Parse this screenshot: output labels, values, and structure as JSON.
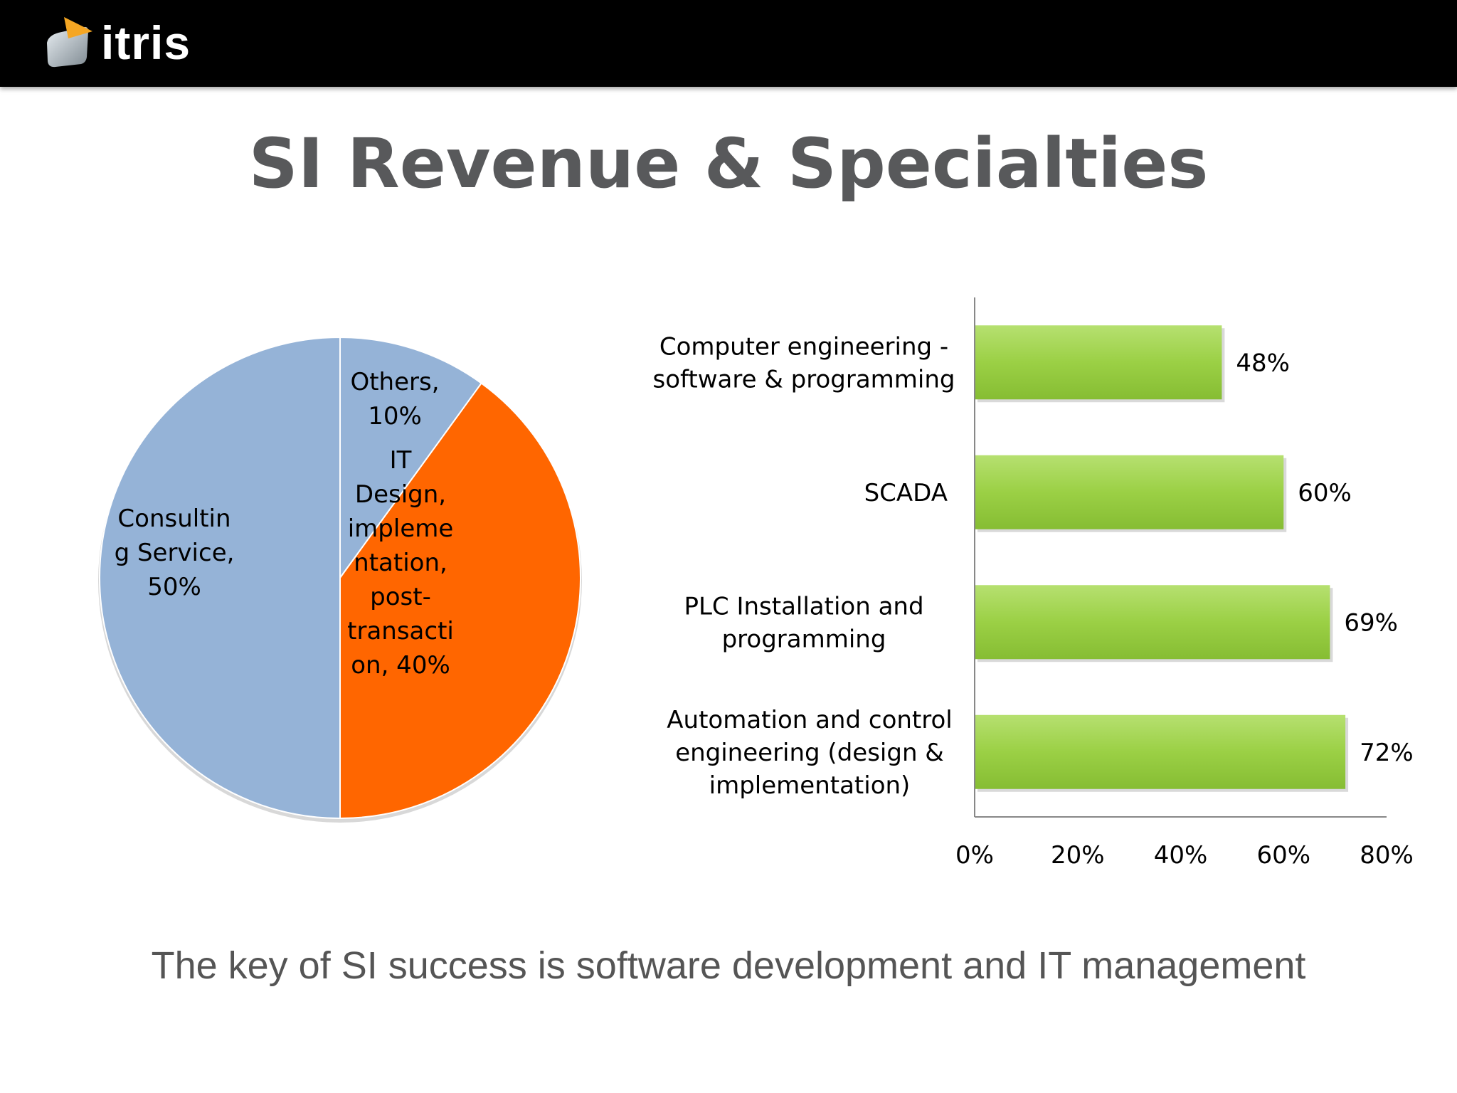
{
  "header": {
    "logo_text": "itris",
    "logo_icon": "itris-logo-icon"
  },
  "title": "SI Revenue & Specialties",
  "caption": "The key of SI success is software development and IT management",
  "colors": {
    "pie_blue": "#95b3d7",
    "pie_orange": "#ff6600",
    "bar_green": "#9bd045",
    "axis": "#888888",
    "text": "#000000"
  },
  "chart_data": [
    {
      "type": "pie",
      "slices": [
        {
          "label_lines": [
            "Others,",
            "10%"
          ],
          "value": 10,
          "color": "#95b3d7"
        },
        {
          "label_lines": [
            "IT",
            "Design,",
            "impleme",
            "ntation,",
            "post-",
            "transacti",
            "on, 40%"
          ],
          "value": 40,
          "color": "#ff6600"
        },
        {
          "label_lines": [
            "Consultin",
            "g Service,",
            "50%"
          ],
          "value": 50,
          "color": "#95b3d7"
        }
      ]
    },
    {
      "type": "bar",
      "orientation": "horizontal",
      "categories": [
        [
          "Computer engineering -",
          "software & programming"
        ],
        [
          "SCADA"
        ],
        [
          "PLC Installation and",
          "programming"
        ],
        [
          "Automation and control",
          "engineering (design &",
          "implementation)"
        ]
      ],
      "values": [
        48,
        60,
        69,
        72
      ],
      "value_labels": [
        "48%",
        "60%",
        "69%",
        "72%"
      ],
      "xlim": [
        0,
        80
      ],
      "xticks": [
        "0%",
        "20%",
        "40%",
        "60%",
        "80%"
      ],
      "grid": false
    }
  ]
}
